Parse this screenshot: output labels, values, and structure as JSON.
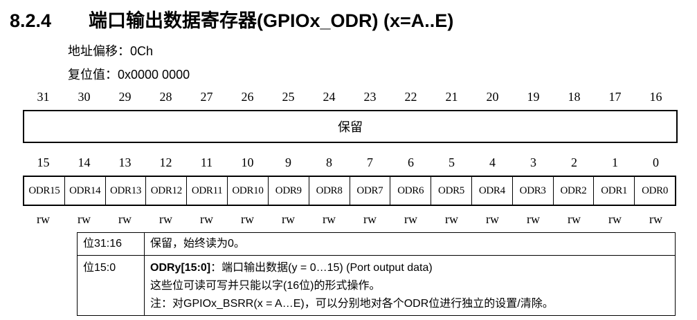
{
  "section": {
    "number": "8.2.4",
    "title": "端口输出数据寄存器(GPIOx_ODR) (x=A..E)"
  },
  "info": {
    "offset": "地址偏移：0Ch",
    "reset": "复位值：0x0000 0000"
  },
  "upper_bits": [
    "31",
    "30",
    "29",
    "28",
    "27",
    "26",
    "25",
    "24",
    "23",
    "22",
    "21",
    "20",
    "19",
    "18",
    "17",
    "16"
  ],
  "reserved_label": "保留",
  "lower_bits": [
    "15",
    "14",
    "13",
    "12",
    "11",
    "10",
    "9",
    "8",
    "7",
    "6",
    "5",
    "4",
    "3",
    "2",
    "1",
    "0"
  ],
  "fields": [
    "ODR15",
    "ODR14",
    "ODR13",
    "ODR12",
    "ODR11",
    "ODR10",
    "ODR9",
    "ODR8",
    "ODR7",
    "ODR6",
    "ODR5",
    "ODR4",
    "ODR3",
    "ODR2",
    "ODR1",
    "ODR0"
  ],
  "access": [
    "rw",
    "rw",
    "rw",
    "rw",
    "rw",
    "rw",
    "rw",
    "rw",
    "rw",
    "rw",
    "rw",
    "rw",
    "rw",
    "rw",
    "rw",
    "rw"
  ],
  "desc": {
    "row1": {
      "bits": "位31:16",
      "text": "保留，始终读为0。"
    },
    "row2": {
      "bits": "位15:0",
      "field_name": "ODRy[15:0]",
      "line1_rest": "：端口输出数据(y = 0…15) (Port output data)",
      "line2": "这些位可读可写并只能以字(16位)的形式操作。",
      "line3": "注：对GPIOx_BSRR(x = A…E)，可以分别地对各个ODR位进行独立的设置/清除。"
    }
  }
}
